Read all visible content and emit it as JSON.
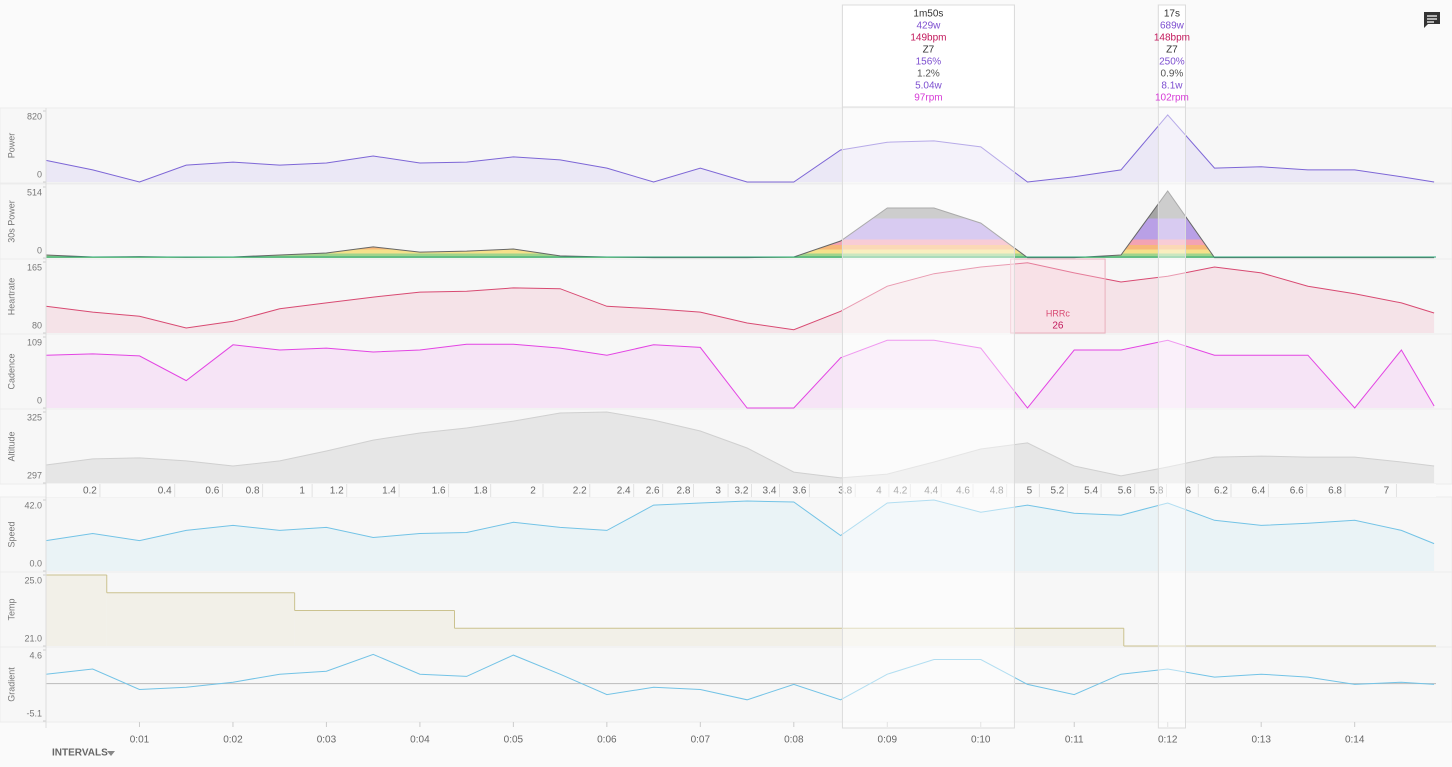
{
  "chart_data": {
    "type": "multi-panel",
    "xlim": [
      0,
      14.87
    ],
    "x": [
      0,
      0.5,
      1,
      1.5,
      2,
      2.5,
      3,
      3.5,
      4,
      4.5,
      5,
      5.5,
      6,
      6.5,
      7,
      7.5,
      8,
      8.5,
      9,
      9.5,
      10,
      10.5,
      11,
      11.5,
      12,
      12.5,
      13,
      13.5,
      14,
      14.5,
      14.85
    ],
    "xticks": [
      {
        "value": 1,
        "label": "0:01"
      },
      {
        "value": 2,
        "label": "0:02"
      },
      {
        "value": 3,
        "label": "0:03"
      },
      {
        "value": 4,
        "label": "0:04"
      },
      {
        "value": 5,
        "label": "0:05"
      },
      {
        "value": 6,
        "label": "0:06"
      },
      {
        "value": 7,
        "label": "0:07"
      },
      {
        "value": 8,
        "label": "0:08"
      },
      {
        "value": 9,
        "label": "0:09"
      },
      {
        "value": 10,
        "label": "0:10"
      },
      {
        "value": 11,
        "label": "0:11"
      },
      {
        "value": 12,
        "label": "0:12"
      },
      {
        "value": 13,
        "label": "0:13"
      },
      {
        "value": 14,
        "label": "0:14"
      }
    ],
    "distance_ticks": [
      {
        "value": 0.47,
        "label": "0.2"
      },
      {
        "value": 1.27,
        "label": "0.4"
      },
      {
        "value": 1.78,
        "label": "0.6"
      },
      {
        "value": 2.21,
        "label": "0.8"
      },
      {
        "value": 2.74,
        "label": "1"
      },
      {
        "value": 3.11,
        "label": "1.2"
      },
      {
        "value": 3.67,
        "label": "1.4"
      },
      {
        "value": 4.2,
        "label": "1.6"
      },
      {
        "value": 4.65,
        "label": "1.8"
      },
      {
        "value": 5.21,
        "label": "2"
      },
      {
        "value": 5.71,
        "label": "2.2"
      },
      {
        "value": 6.18,
        "label": "2.4"
      },
      {
        "value": 6.49,
        "label": "2.6"
      },
      {
        "value": 6.82,
        "label": "2.8"
      },
      {
        "value": 7.19,
        "label": "3"
      },
      {
        "value": 7.44,
        "label": "3.2"
      },
      {
        "value": 7.74,
        "label": "3.4"
      },
      {
        "value": 8.06,
        "label": "3.6"
      },
      {
        "value": 8.55,
        "label": "3.8"
      },
      {
        "value": 8.91,
        "label": "4"
      },
      {
        "value": 9.14,
        "label": "4.2"
      },
      {
        "value": 9.47,
        "label": "4.4"
      },
      {
        "value": 9.81,
        "label": "4.6"
      },
      {
        "value": 10.17,
        "label": "4.8"
      },
      {
        "value": 10.52,
        "label": "5"
      },
      {
        "value": 10.82,
        "label": "5.2"
      },
      {
        "value": 11.18,
        "label": "5.4"
      },
      {
        "value": 11.54,
        "label": "5.6"
      },
      {
        "value": 11.88,
        "label": "5.8"
      },
      {
        "value": 12.22,
        "label": "6"
      },
      {
        "value": 12.57,
        "label": "6.2"
      },
      {
        "value": 12.97,
        "label": "6.4"
      },
      {
        "value": 13.38,
        "label": "6.6"
      },
      {
        "value": 13.79,
        "label": "6.8"
      },
      {
        "value": 14.34,
        "label": "7"
      }
    ],
    "panels": [
      {
        "type": "area",
        "ylabel": "Power",
        "color": "#7d66d6",
        "fill": "#ebe8f6",
        "ylim": [
          0,
          820
        ],
        "yticks": [
          820,
          0
        ],
        "values": [
          250,
          140,
          0,
          195,
          230,
          195,
          220,
          300,
          220,
          230,
          290,
          255,
          160,
          0,
          160,
          0,
          0,
          370,
          460,
          475,
          405,
          0,
          60,
          140,
          775,
          160,
          175,
          140,
          140,
          60,
          0
        ]
      },
      {
        "type": "zone-area",
        "ylabel": "30s Power",
        "color": "#666666",
        "ylim": [
          0,
          514
        ],
        "yticks": [
          514,
          0
        ],
        "values": [
          22,
          7,
          10,
          5,
          7,
          22,
          36,
          80,
          43,
          50,
          65,
          15,
          7,
          3,
          3,
          3,
          7,
          123,
          362,
          362,
          253,
          3,
          3,
          22,
          485,
          3,
          3,
          3,
          3,
          3,
          3
        ]
      },
      {
        "type": "area",
        "ylabel": "Heartrate",
        "color": "#d84a72",
        "fill": "#f5e3e8",
        "ylim": [
          80,
          165
        ],
        "yticks": [
          165,
          80
        ],
        "values": [
          112,
          105,
          100,
          86,
          94,
          109,
          116,
          123,
          129,
          130,
          134,
          133,
          112,
          109,
          105,
          92,
          84,
          106,
          136,
          151,
          159,
          164,
          152,
          141,
          148,
          159,
          152,
          136,
          127,
          116,
          104
        ]
      },
      {
        "type": "area",
        "ylabel": "Cadence",
        "color": "#e344e3",
        "fill": "#f6e4f6",
        "ylim": [
          0,
          109
        ],
        "yticks": [
          109,
          0
        ],
        "values": [
          81,
          83,
          80,
          42,
          97,
          89,
          92,
          86,
          89,
          98,
          98,
          92,
          81,
          97,
          93,
          0,
          0,
          77,
          104,
          104,
          92,
          0,
          89,
          89,
          104,
          81,
          81,
          81,
          0,
          89,
          3
        ]
      },
      {
        "type": "area",
        "ylabel": "Altitude",
        "color": "#d0d0d0",
        "fill": "#e6e6e6",
        "ylim": [
          297,
          325
        ],
        "yticks": [
          325,
          297
        ],
        "values": [
          304.1,
          306.5,
          306.9,
          305.7,
          303.7,
          305.7,
          309.6,
          313.9,
          316.7,
          318.7,
          321.4,
          324.6,
          325,
          321.8,
          317.5,
          310.8,
          301.3,
          299,
          300.5,
          305.3,
          310.4,
          312.8,
          303.7,
          299.8,
          303.3,
          307.2,
          307.6,
          307.2,
          307.2,
          305.3,
          303.7
        ]
      },
      {
        "type": "area",
        "ylabel": "Speed",
        "color": "#73c3e6",
        "fill": "#eaf3f6",
        "ylim": [
          0,
          42
        ],
        "yticks": [
          {
            "value": 42,
            "label": "42.0"
          },
          {
            "value": 0,
            "label": "0.0"
          }
        ],
        "values": [
          18,
          22.2,
          18,
          24,
          27,
          24,
          25.8,
          19.8,
          22.2,
          22.8,
          28.8,
          25.8,
          24,
          39,
          40.2,
          41.4,
          40.8,
          21,
          40.2,
          42,
          34.8,
          39,
          34.2,
          33,
          40.2,
          30,
          27,
          28.2,
          30,
          24,
          16.2
        ]
      },
      {
        "type": "step",
        "ylabel": "Temp",
        "color": "#cbc28f",
        "fill": "#f2f0e8",
        "ylim": [
          21,
          25
        ],
        "yticks": [
          {
            "value": 25,
            "label": "25.0"
          },
          {
            "value": 21,
            "label": "21.0"
          }
        ],
        "x": [
          0,
          0.65,
          2.66,
          4.37,
          11.53
        ],
        "values": [
          25,
          24,
          23,
          22,
          21
        ]
      },
      {
        "type": "line",
        "ylabel": "Gradient",
        "color": "#73c3e6",
        "ylim": [
          -5.1,
          4.6
        ],
        "yticks": [
          4.6,
          -5.1
        ],
        "reference": 0,
        "values": [
          1.3,
          2,
          -0.8,
          -0.5,
          0.2,
          1.3,
          1.7,
          4,
          1.3,
          1,
          3.9,
          1.3,
          -1.5,
          -0.5,
          -0.8,
          -2.2,
          -0.1,
          -2.2,
          1.3,
          3.3,
          3.3,
          -0.1,
          -1.5,
          1.3,
          2,
          0.9,
          1.3,
          0.9,
          -0.1,
          0.2,
          -0.1
        ]
      }
    ],
    "stat_colors": [
      "#333333",
      "#7d4fd0",
      "#c2185b",
      "#333333",
      "#7d4fd0",
      "#555555",
      "#7d4fd0",
      "#d63bd6"
    ],
    "intervals": [
      {
        "start": 8.52,
        "end": 10.36,
        "stats": [
          "1m50s",
          "429w",
          "149bpm",
          "Z7",
          "156%",
          "1.2%",
          "5.04w",
          "97rpm"
        ]
      },
      {
        "start": 11.9,
        "end": 12.19,
        "stats": [
          "17s",
          "689w",
          "148bpm",
          "Z7",
          "250%",
          "0.9%",
          "8.1w",
          "102rpm"
        ]
      }
    ],
    "hrrc": {
      "label": "HRRc",
      "value": 26,
      "start": 10.32,
      "end": 11.33
    },
    "intervals_button": "INTERVALS"
  }
}
